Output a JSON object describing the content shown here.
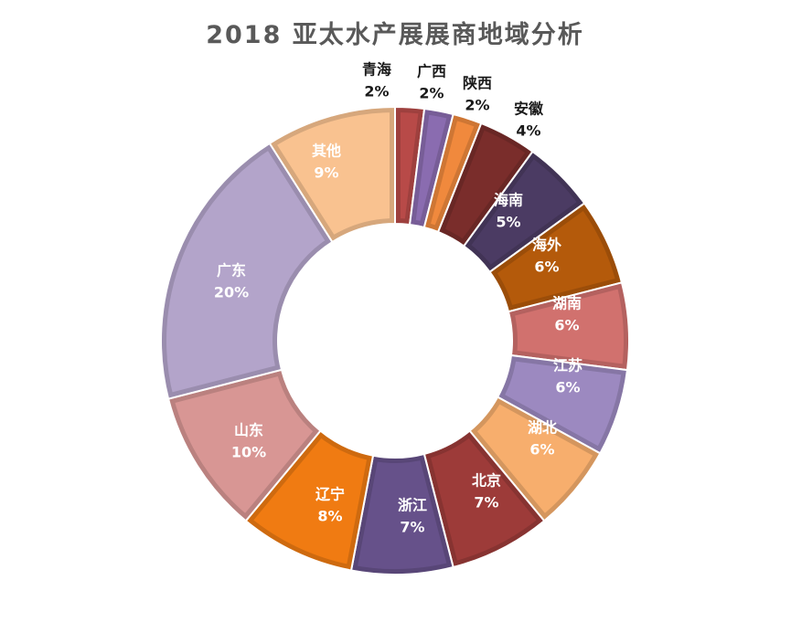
{
  "chart_data": {
    "type": "pie",
    "title": "2018 亚太水产展展商地域分析",
    "categories": [
      "青海",
      "广西",
      "陕西",
      "安徽",
      "海南",
      "海外",
      "湖南",
      "江苏",
      "湖北",
      "北京",
      "浙江",
      "辽宁",
      "山东",
      "广东",
      "其他"
    ],
    "values": [
      2,
      2,
      2,
      4,
      5,
      6,
      6,
      6,
      6,
      7,
      7,
      8,
      10,
      20,
      9
    ],
    "value_labels": [
      "2%",
      "2%",
      "2%",
      "4%",
      "5%",
      "6%",
      "6%",
      "6%",
      "6%",
      "7%",
      "7%",
      "8%",
      "10%",
      "20%",
      "9%"
    ],
    "colors": [
      "#B84A48",
      "#8A6CB0",
      "#F0893D",
      "#7A2D2B",
      "#4B3B63",
      "#B45A0B",
      "#D1716E",
      "#9C89C0",
      "#F7AE6D",
      "#9D3B39",
      "#66518A",
      "#F07B12",
      "#D89694",
      "#B3A4CA",
      "#F9C290"
    ]
  }
}
